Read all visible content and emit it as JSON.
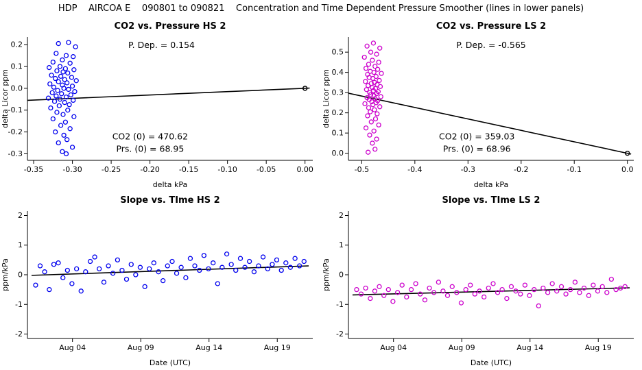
{
  "header": {
    "title": "HDP    AIRCOA E    090801 to 090821    Concentration and Time Dependent Pressure Smoother (lines in lower panels)"
  },
  "colors": {
    "hs_points": "#0000EE",
    "ls_points": "#CC00CC",
    "fit_line": "#000000",
    "anchor": "#000000"
  },
  "chart_data": [
    {
      "id": "co2_vs_pressure_hs2",
      "type": "scatter",
      "title": "CO2 vs. Pressure HS 2",
      "xlabel": "delta kPa",
      "ylabel": "delta Licor ppm",
      "xlim": [
        -0.358,
        0.01
      ],
      "ylim": [
        -0.33,
        0.235
      ],
      "xticks": [
        {
          "v": -0.35,
          "label": "-0.35"
        },
        {
          "v": -0.3,
          "label": "-0.30"
        },
        {
          "v": -0.25,
          "label": "-0.25"
        },
        {
          "v": -0.2,
          "label": "-0.20"
        },
        {
          "v": -0.15,
          "label": "-0.15"
        },
        {
          "v": -0.1,
          "label": "-0.10"
        },
        {
          "v": -0.05,
          "label": "-0.05"
        },
        {
          "v": 0.0,
          "label": "0.00"
        }
      ],
      "yticks": [
        {
          "v": -0.3,
          "label": "-0.3"
        },
        {
          "v": -0.2,
          "label": "-0.2"
        },
        {
          "v": -0.1,
          "label": "-0.1"
        },
        {
          "v": 0.0,
          "label": "0.0"
        },
        {
          "v": 0.1,
          "label": "0.1"
        },
        {
          "v": 0.2,
          "label": "0.2"
        }
      ],
      "point_color": "#0000EE",
      "fit_line": {
        "x1": -0.358,
        "y1": -0.055,
        "x2": 0.006,
        "y2": 0.001,
        "slope": 0.154
      },
      "anchor_point": [
        0.0,
        0.0
      ],
      "annotations": [
        {
          "text": "P. Dep. =  0.154",
          "fx": 0.47,
          "fy": 0.09
        },
        {
          "text": "CO2 (0) =  470.62",
          "fx": 0.43,
          "fy": 0.83
        },
        {
          "text": "Prs. (0) =  68.95",
          "fx": 0.43,
          "fy": 0.93
        }
      ],
      "points": [
        [
          -0.305,
          0.21
        ],
        [
          -0.318,
          0.205
        ],
        [
          -0.296,
          0.19
        ],
        [
          -0.321,
          0.16
        ],
        [
          -0.308,
          0.15
        ],
        [
          -0.299,
          0.145
        ],
        [
          -0.313,
          0.13
        ],
        [
          -0.325,
          0.12
        ],
        [
          -0.303,
          0.115
        ],
        [
          -0.316,
          0.1
        ],
        [
          -0.33,
          0.095
        ],
        [
          -0.309,
          0.09
        ],
        [
          -0.298,
          0.085
        ],
        [
          -0.32,
          0.08
        ],
        [
          -0.312,
          0.075
        ],
        [
          -0.306,
          0.07
        ],
        [
          -0.327,
          0.06
        ],
        [
          -0.315,
          0.055
        ],
        [
          -0.301,
          0.05
        ],
        [
          -0.322,
          0.045
        ],
        [
          -0.31,
          0.04
        ],
        [
          -0.295,
          0.035
        ],
        [
          -0.318,
          0.03
        ],
        [
          -0.307,
          0.025
        ],
        [
          -0.329,
          0.02
        ],
        [
          -0.313,
          0.015
        ],
        [
          -0.3,
          0.01
        ],
        [
          -0.324,
          0.005
        ],
        [
          -0.311,
          0.0
        ],
        [
          -0.305,
          -0.005
        ],
        [
          -0.319,
          -0.01
        ],
        [
          -0.297,
          -0.015
        ],
        [
          -0.326,
          -0.02
        ],
        [
          -0.314,
          -0.025
        ],
        [
          -0.302,
          -0.03
        ],
        [
          -0.321,
          -0.035
        ],
        [
          -0.308,
          -0.04
        ],
        [
          -0.331,
          -0.045
        ],
        [
          -0.316,
          -0.05
        ],
        [
          -0.299,
          -0.055
        ],
        [
          -0.323,
          -0.06
        ],
        [
          -0.31,
          -0.065
        ],
        [
          -0.304,
          -0.075
        ],
        [
          -0.317,
          -0.08
        ],
        [
          -0.328,
          -0.09
        ],
        [
          -0.306,
          -0.1
        ],
        [
          -0.32,
          -0.11
        ],
        [
          -0.312,
          -0.12
        ],
        [
          -0.298,
          -0.13
        ],
        [
          -0.325,
          -0.14
        ],
        [
          -0.309,
          -0.155
        ],
        [
          -0.315,
          -0.17
        ],
        [
          -0.303,
          -0.185
        ],
        [
          -0.322,
          -0.2
        ],
        [
          -0.311,
          -0.215
        ],
        [
          -0.307,
          -0.235
        ],
        [
          -0.318,
          -0.25
        ],
        [
          -0.3,
          -0.27
        ],
        [
          -0.313,
          -0.29
        ],
        [
          -0.308,
          -0.3
        ]
      ]
    },
    {
      "id": "co2_vs_pressure_ls2",
      "type": "scatter",
      "title": "CO2 vs. Pressure LS 2",
      "xlabel": "delta kPa",
      "ylabel": "delta Licor ppm",
      "xlim": [
        -0.525,
        0.012
      ],
      "ylim": [
        -0.035,
        0.575
      ],
      "xticks": [
        {
          "v": -0.5,
          "label": "-0.5"
        },
        {
          "v": -0.4,
          "label": "-0.4"
        },
        {
          "v": -0.3,
          "label": "-0.3"
        },
        {
          "v": -0.2,
          "label": "-0.2"
        },
        {
          "v": -0.1,
          "label": "-0.1"
        },
        {
          "v": 0.0,
          "label": "0.0"
        }
      ],
      "yticks": [
        {
          "v": 0.0,
          "label": "0.0"
        },
        {
          "v": 0.1,
          "label": "0.1"
        },
        {
          "v": 0.2,
          "label": "0.2"
        },
        {
          "v": 0.3,
          "label": "0.3"
        },
        {
          "v": 0.4,
          "label": "0.4"
        },
        {
          "v": 0.5,
          "label": "0.5"
        }
      ],
      "point_color": "#CC00CC",
      "fit_line": {
        "x1": -0.525,
        "y1": 0.297,
        "x2": 0.007,
        "y2": -0.004,
        "slope": -0.565
      },
      "anchor_point": [
        0.0,
        0.0
      ],
      "annotations": [
        {
          "text": "P. Dep. = -0.565",
          "fx": 0.5,
          "fy": 0.09
        },
        {
          "text": "CO2 (0) =  359.03",
          "fx": 0.45,
          "fy": 0.83
        },
        {
          "text": "Prs. (0) =  68.96",
          "fx": 0.45,
          "fy": 0.93
        }
      ],
      "points": [
        [
          -0.478,
          0.545
        ],
        [
          -0.49,
          0.53
        ],
        [
          -0.466,
          0.52
        ],
        [
          -0.483,
          0.5
        ],
        [
          -0.472,
          0.49
        ],
        [
          -0.495,
          0.475
        ],
        [
          -0.48,
          0.46
        ],
        [
          -0.468,
          0.45
        ],
        [
          -0.487,
          0.44
        ],
        [
          -0.475,
          0.43
        ],
        [
          -0.492,
          0.42
        ],
        [
          -0.47,
          0.415
        ],
        [
          -0.484,
          0.405
        ],
        [
          -0.477,
          0.4
        ],
        [
          -0.463,
          0.395
        ],
        [
          -0.489,
          0.39
        ],
        [
          -0.473,
          0.38
        ],
        [
          -0.486,
          0.375
        ],
        [
          -0.479,
          0.37
        ],
        [
          -0.467,
          0.36
        ],
        [
          -0.493,
          0.355
        ],
        [
          -0.476,
          0.35
        ],
        [
          -0.482,
          0.345
        ],
        [
          -0.471,
          0.34
        ],
        [
          -0.488,
          0.335
        ],
        [
          -0.465,
          0.33
        ],
        [
          -0.48,
          0.325
        ],
        [
          -0.474,
          0.32
        ],
        [
          -0.491,
          0.315
        ],
        [
          -0.478,
          0.31
        ],
        [
          -0.469,
          0.305
        ],
        [
          -0.485,
          0.3
        ],
        [
          -0.472,
          0.295
        ],
        [
          -0.483,
          0.29
        ],
        [
          -0.477,
          0.285
        ],
        [
          -0.464,
          0.28
        ],
        [
          -0.49,
          0.275
        ],
        [
          -0.475,
          0.27
        ],
        [
          -0.486,
          0.265
        ],
        [
          -0.47,
          0.26
        ],
        [
          -0.481,
          0.255
        ],
        [
          -0.473,
          0.25
        ],
        [
          -0.494,
          0.245
        ],
        [
          -0.479,
          0.24
        ],
        [
          -0.466,
          0.23
        ],
        [
          -0.487,
          0.225
        ],
        [
          -0.476,
          0.215
        ],
        [
          -0.484,
          0.205
        ],
        [
          -0.471,
          0.195
        ],
        [
          -0.489,
          0.185
        ],
        [
          -0.474,
          0.17
        ],
        [
          -0.482,
          0.155
        ],
        [
          -0.468,
          0.14
        ],
        [
          -0.492,
          0.125
        ],
        [
          -0.477,
          0.11
        ],
        [
          -0.485,
          0.09
        ],
        [
          -0.472,
          0.07
        ],
        [
          -0.48,
          0.05
        ],
        [
          -0.475,
          0.02
        ],
        [
          -0.488,
          0.005
        ]
      ]
    },
    {
      "id": "slope_vs_time_hs2",
      "type": "scatter",
      "title": "Slope vs. TIme HS 2",
      "xlabel": "Date (UTC)",
      "ylabel": "ppm/kPa",
      "xlim": [
        0.7,
        21.6
      ],
      "ylim": [
        -2.15,
        2.15
      ],
      "xticks": [
        {
          "v": 4,
          "label": "Aug 04"
        },
        {
          "v": 9,
          "label": "Aug 09"
        },
        {
          "v": 14,
          "label": "Aug 14"
        },
        {
          "v": 19,
          "label": "Aug 19"
        }
      ],
      "yticks": [
        {
          "v": -2,
          "label": "-2"
        },
        {
          "v": -1,
          "label": "-1"
        },
        {
          "v": 0,
          "label": "0"
        },
        {
          "v": 1,
          "label": "1"
        },
        {
          "v": 2,
          "label": "2"
        }
      ],
      "point_color": "#0000EE",
      "fit_line": {
        "x1": 1.0,
        "y1": -0.02,
        "x2": 21.3,
        "y2": 0.3
      },
      "anchor_point": null,
      "annotations": [],
      "points": [
        [
          1.3,
          -0.35
        ],
        [
          1.63,
          0.3
        ],
        [
          1.96,
          0.1
        ],
        [
          2.3,
          -0.5
        ],
        [
          2.63,
          0.35
        ],
        [
          2.96,
          0.4
        ],
        [
          3.3,
          -0.1
        ],
        [
          3.63,
          0.15
        ],
        [
          3.96,
          -0.3
        ],
        [
          4.3,
          0.2
        ],
        [
          4.63,
          -0.55
        ],
        [
          4.96,
          0.1
        ],
        [
          5.3,
          0.45
        ],
        [
          5.63,
          0.6
        ],
        [
          5.96,
          0.2
        ],
        [
          6.3,
          -0.25
        ],
        [
          6.63,
          0.3
        ],
        [
          6.96,
          0.05
        ],
        [
          7.3,
          0.5
        ],
        [
          7.63,
          0.15
        ],
        [
          7.96,
          -0.15
        ],
        [
          8.3,
          0.35
        ],
        [
          8.63,
          0.0
        ],
        [
          8.96,
          0.25
        ],
        [
          9.3,
          -0.4
        ],
        [
          9.63,
          0.2
        ],
        [
          9.96,
          0.4
        ],
        [
          10.3,
          0.1
        ],
        [
          10.63,
          -0.2
        ],
        [
          10.96,
          0.3
        ],
        [
          11.3,
          0.45
        ],
        [
          11.63,
          0.05
        ],
        [
          11.96,
          0.25
        ],
        [
          12.3,
          -0.1
        ],
        [
          12.63,
          0.55
        ],
        [
          12.96,
          0.3
        ],
        [
          13.3,
          0.15
        ],
        [
          13.63,
          0.65
        ],
        [
          13.96,
          0.2
        ],
        [
          14.3,
          0.4
        ],
        [
          14.63,
          -0.3
        ],
        [
          14.96,
          0.25
        ],
        [
          15.3,
          0.7
        ],
        [
          15.63,
          0.35
        ],
        [
          15.96,
          0.15
        ],
        [
          16.3,
          0.55
        ],
        [
          16.63,
          0.25
        ],
        [
          16.96,
          0.45
        ],
        [
          17.3,
          0.1
        ],
        [
          17.63,
          0.3
        ],
        [
          17.96,
          0.6
        ],
        [
          18.3,
          0.2
        ],
        [
          18.63,
          0.35
        ],
        [
          18.96,
          0.5
        ],
        [
          19.3,
          0.15
        ],
        [
          19.63,
          0.4
        ],
        [
          19.96,
          0.25
        ],
        [
          20.3,
          0.55
        ],
        [
          20.63,
          0.3
        ],
        [
          20.96,
          0.45
        ]
      ]
    },
    {
      "id": "slope_vs_time_ls2",
      "type": "scatter",
      "title": "Slope vs. TIme LS 2",
      "xlabel": "Date (UTC)",
      "ylabel": "ppm/kPa",
      "xlim": [
        0.7,
        21.6
      ],
      "ylim": [
        -2.15,
        2.15
      ],
      "xticks": [
        {
          "v": 4,
          "label": "Aug 04"
        },
        {
          "v": 9,
          "label": "Aug 09"
        },
        {
          "v": 14,
          "label": "Aug 14"
        },
        {
          "v": 19,
          "label": "Aug 19"
        }
      ],
      "yticks": [
        {
          "v": -2,
          "label": "-2"
        },
        {
          "v": -1,
          "label": "-1"
        },
        {
          "v": 0,
          "label": "0"
        },
        {
          "v": 1,
          "label": "1"
        },
        {
          "v": 2,
          "label": "2"
        }
      ],
      "point_color": "#CC00CC",
      "fit_line": {
        "x1": 1.0,
        "y1": -0.68,
        "x2": 21.3,
        "y2": -0.44
      },
      "anchor_point": null,
      "annotations": [],
      "points": [
        [
          1.3,
          -0.5
        ],
        [
          1.63,
          -0.65
        ],
        [
          1.96,
          -0.45
        ],
        [
          2.3,
          -0.8
        ],
        [
          2.63,
          -0.55
        ],
        [
          2.96,
          -0.4
        ],
        [
          3.3,
          -0.7
        ],
        [
          3.63,
          -0.5
        ],
        [
          3.96,
          -0.9
        ],
        [
          4.3,
          -0.6
        ],
        [
          4.63,
          -0.35
        ],
        [
          4.96,
          -0.75
        ],
        [
          5.3,
          -0.5
        ],
        [
          5.63,
          -0.3
        ],
        [
          5.96,
          -0.65
        ],
        [
          6.3,
          -0.85
        ],
        [
          6.63,
          -0.45
        ],
        [
          6.96,
          -0.6
        ],
        [
          7.3,
          -0.25
        ],
        [
          7.63,
          -0.55
        ],
        [
          7.96,
          -0.7
        ],
        [
          8.3,
          -0.4
        ],
        [
          8.63,
          -0.6
        ],
        [
          8.96,
          -0.95
        ],
        [
          9.3,
          -0.5
        ],
        [
          9.63,
          -0.35
        ],
        [
          9.96,
          -0.65
        ],
        [
          10.3,
          -0.55
        ],
        [
          10.63,
          -0.75
        ],
        [
          10.96,
          -0.45
        ],
        [
          11.3,
          -0.3
        ],
        [
          11.63,
          -0.6
        ],
        [
          11.96,
          -0.5
        ],
        [
          12.3,
          -0.8
        ],
        [
          12.63,
          -0.4
        ],
        [
          12.96,
          -0.55
        ],
        [
          13.3,
          -0.65
        ],
        [
          13.63,
          -0.35
        ],
        [
          13.96,
          -0.7
        ],
        [
          14.3,
          -0.5
        ],
        [
          14.63,
          -1.05
        ],
        [
          14.96,
          -0.45
        ],
        [
          15.3,
          -0.6
        ],
        [
          15.63,
          -0.3
        ],
        [
          15.96,
          -0.55
        ],
        [
          16.3,
          -0.4
        ],
        [
          16.63,
          -0.65
        ],
        [
          16.96,
          -0.5
        ],
        [
          17.3,
          -0.25
        ],
        [
          17.63,
          -0.6
        ],
        [
          17.96,
          -0.45
        ],
        [
          18.3,
          -0.7
        ],
        [
          18.63,
          -0.35
        ],
        [
          18.96,
          -0.55
        ],
        [
          19.3,
          -0.4
        ],
        [
          19.63,
          -0.6
        ],
        [
          19.96,
          -0.15
        ],
        [
          20.3,
          -0.5
        ],
        [
          20.63,
          -0.45
        ],
        [
          20.96,
          -0.4
        ]
      ]
    }
  ]
}
